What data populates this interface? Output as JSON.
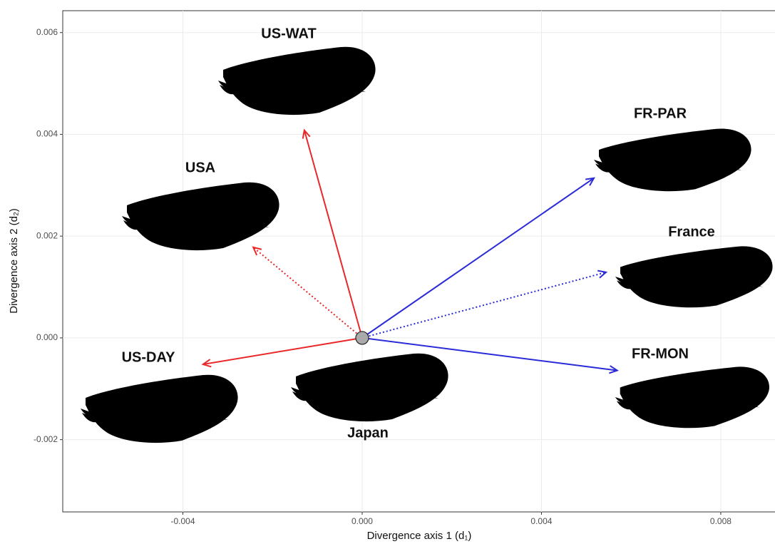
{
  "chart_data": {
    "type": "arrows",
    "xlabel": "Divergence axis 1 (d₁)",
    "ylabel": "Divergence axis 2 (d₂)",
    "xlim": [
      -0.00668,
      0.00921
    ],
    "ylim": [
      -0.00342,
      0.00643
    ],
    "xticks": [
      -0.004,
      {
        "value": 0,
        "label": "0.000"
      },
      0.004,
      0.008
    ],
    "yticks": [
      -0.002,
      {
        "value": 0,
        "label": "0.000"
      },
      0.002,
      0.004,
      0.006
    ],
    "grid": true,
    "point": {
      "name": "Japan",
      "x": 0,
      "y": 0,
      "color": "#aaaaaa"
    },
    "series": [
      {
        "name": "US-WAT",
        "color": "#e8282a",
        "linestyle": "solid",
        "x": -0.00129,
        "y": 0.00408
      },
      {
        "name": "USA",
        "color": "#e8282a",
        "linestyle": "dotted",
        "x": -0.00243,
        "y": 0.00178
      },
      {
        "name": "US-DAY",
        "color": "#e8282a",
        "linestyle": "solid",
        "x": -0.00355,
        "y": -0.00052
      },
      {
        "name": "FR-PAR",
        "color": "#2b2bd8",
        "linestyle": "solid",
        "x": 0.00517,
        "y": 0.00314
      },
      {
        "name": "France",
        "color": "#2b2bd8",
        "linestyle": "dotted",
        "x": 0.00544,
        "y": 0.00129
      },
      {
        "name": "FR-MON",
        "color": "#2b2bd8",
        "linestyle": "solid",
        "x": 0.00569,
        "y": -0.00064
      }
    ]
  }
}
